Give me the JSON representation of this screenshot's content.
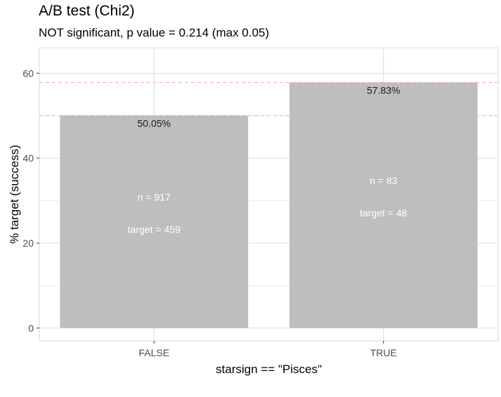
{
  "title": "A/B test (Chi2)",
  "subtitle": "NOT significant, p value = 0.214 (max 0.05)",
  "colors": {
    "bar": "#bebebe",
    "grid_major": "#dcdcdc",
    "grid_minor": "#ececec",
    "panel_border": "#d9d9d9",
    "reference_line": "#f2a8a8"
  },
  "chart_data": {
    "type": "bar",
    "title": "A/B test (Chi2)",
    "subtitle": "NOT significant, p value = 0.214 (max 0.05)",
    "xlabel": "starsign == \"Pisces\"",
    "ylabel": "% target (success)",
    "categories": [
      "FALSE",
      "TRUE"
    ],
    "values": [
      50.05,
      57.83
    ],
    "value_labels": [
      "50.05%",
      "57.83%"
    ],
    "n_labels": [
      "n = 917",
      "n =  83"
    ],
    "target_labels": [
      "target = 459",
      "target =  48"
    ],
    "reference_lines": [
      50.05,
      57.83
    ],
    "ylim": [
      -3,
      66
    ],
    "yticks": [
      0,
      20,
      40,
      60
    ],
    "ytick_labels": [
      "0",
      "20",
      "40",
      "60"
    ],
    "grid": true,
    "legend": "none"
  }
}
